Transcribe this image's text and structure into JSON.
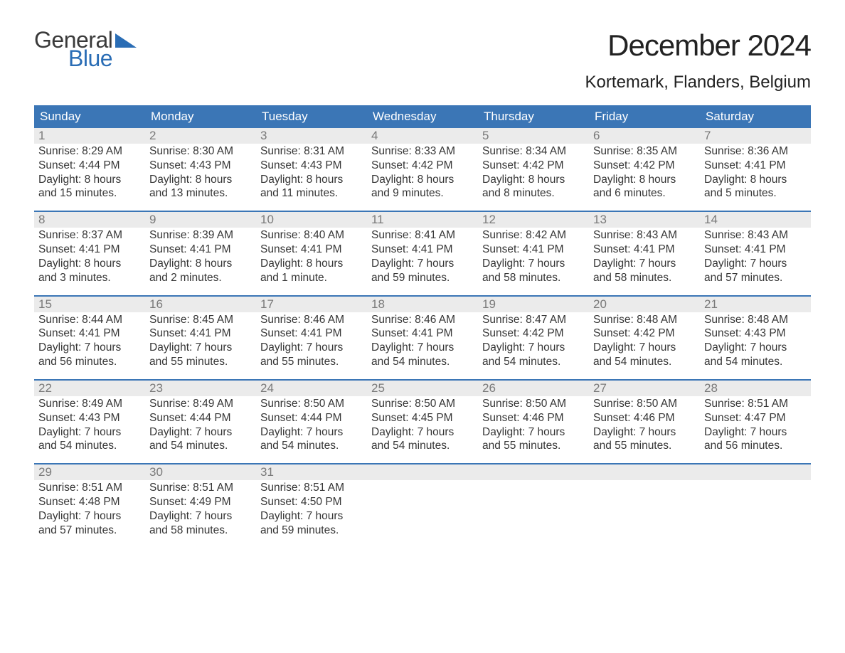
{
  "brand": {
    "word1": "General",
    "word2": "Blue",
    "flag_color": "#2a6db5",
    "text_dark": "#3a3a3a"
  },
  "title": "December 2024",
  "location": "Kortemark, Flanders, Belgium",
  "colors": {
    "header_bg": "#3b76b6",
    "header_text": "#ffffff",
    "daynum_bg": "#ebebeb",
    "daynum_text": "#7a7a7a",
    "body_text": "#363636",
    "week_border": "#3b76b6",
    "page_bg": "#ffffff"
  },
  "typography": {
    "month_title_fontsize": 42,
    "location_fontsize": 24,
    "day_header_fontsize": 17,
    "daynum_fontsize": 17,
    "body_fontsize": 15.5
  },
  "day_headers": [
    "Sunday",
    "Monday",
    "Tuesday",
    "Wednesday",
    "Thursday",
    "Friday",
    "Saturday"
  ],
  "weeks": [
    [
      {
        "n": "1",
        "sunrise": "Sunrise: 8:29 AM",
        "sunset": "Sunset: 4:44 PM",
        "day1": "Daylight: 8 hours",
        "day2": "and 15 minutes."
      },
      {
        "n": "2",
        "sunrise": "Sunrise: 8:30 AM",
        "sunset": "Sunset: 4:43 PM",
        "day1": "Daylight: 8 hours",
        "day2": "and 13 minutes."
      },
      {
        "n": "3",
        "sunrise": "Sunrise: 8:31 AM",
        "sunset": "Sunset: 4:43 PM",
        "day1": "Daylight: 8 hours",
        "day2": "and 11 minutes."
      },
      {
        "n": "4",
        "sunrise": "Sunrise: 8:33 AM",
        "sunset": "Sunset: 4:42 PM",
        "day1": "Daylight: 8 hours",
        "day2": "and 9 minutes."
      },
      {
        "n": "5",
        "sunrise": "Sunrise: 8:34 AM",
        "sunset": "Sunset: 4:42 PM",
        "day1": "Daylight: 8 hours",
        "day2": "and 8 minutes."
      },
      {
        "n": "6",
        "sunrise": "Sunrise: 8:35 AM",
        "sunset": "Sunset: 4:42 PM",
        "day1": "Daylight: 8 hours",
        "day2": "and 6 minutes."
      },
      {
        "n": "7",
        "sunrise": "Sunrise: 8:36 AM",
        "sunset": "Sunset: 4:41 PM",
        "day1": "Daylight: 8 hours",
        "day2": "and 5 minutes."
      }
    ],
    [
      {
        "n": "8",
        "sunrise": "Sunrise: 8:37 AM",
        "sunset": "Sunset: 4:41 PM",
        "day1": "Daylight: 8 hours",
        "day2": "and 3 minutes."
      },
      {
        "n": "9",
        "sunrise": "Sunrise: 8:39 AM",
        "sunset": "Sunset: 4:41 PM",
        "day1": "Daylight: 8 hours",
        "day2": "and 2 minutes."
      },
      {
        "n": "10",
        "sunrise": "Sunrise: 8:40 AM",
        "sunset": "Sunset: 4:41 PM",
        "day1": "Daylight: 8 hours",
        "day2": "and 1 minute."
      },
      {
        "n": "11",
        "sunrise": "Sunrise: 8:41 AM",
        "sunset": "Sunset: 4:41 PM",
        "day1": "Daylight: 7 hours",
        "day2": "and 59 minutes."
      },
      {
        "n": "12",
        "sunrise": "Sunrise: 8:42 AM",
        "sunset": "Sunset: 4:41 PM",
        "day1": "Daylight: 7 hours",
        "day2": "and 58 minutes."
      },
      {
        "n": "13",
        "sunrise": "Sunrise: 8:43 AM",
        "sunset": "Sunset: 4:41 PM",
        "day1": "Daylight: 7 hours",
        "day2": "and 58 minutes."
      },
      {
        "n": "14",
        "sunrise": "Sunrise: 8:43 AM",
        "sunset": "Sunset: 4:41 PM",
        "day1": "Daylight: 7 hours",
        "day2": "and 57 minutes."
      }
    ],
    [
      {
        "n": "15",
        "sunrise": "Sunrise: 8:44 AM",
        "sunset": "Sunset: 4:41 PM",
        "day1": "Daylight: 7 hours",
        "day2": "and 56 minutes."
      },
      {
        "n": "16",
        "sunrise": "Sunrise: 8:45 AM",
        "sunset": "Sunset: 4:41 PM",
        "day1": "Daylight: 7 hours",
        "day2": "and 55 minutes."
      },
      {
        "n": "17",
        "sunrise": "Sunrise: 8:46 AM",
        "sunset": "Sunset: 4:41 PM",
        "day1": "Daylight: 7 hours",
        "day2": "and 55 minutes."
      },
      {
        "n": "18",
        "sunrise": "Sunrise: 8:46 AM",
        "sunset": "Sunset: 4:41 PM",
        "day1": "Daylight: 7 hours",
        "day2": "and 54 minutes."
      },
      {
        "n": "19",
        "sunrise": "Sunrise: 8:47 AM",
        "sunset": "Sunset: 4:42 PM",
        "day1": "Daylight: 7 hours",
        "day2": "and 54 minutes."
      },
      {
        "n": "20",
        "sunrise": "Sunrise: 8:48 AM",
        "sunset": "Sunset: 4:42 PM",
        "day1": "Daylight: 7 hours",
        "day2": "and 54 minutes."
      },
      {
        "n": "21",
        "sunrise": "Sunrise: 8:48 AM",
        "sunset": "Sunset: 4:43 PM",
        "day1": "Daylight: 7 hours",
        "day2": "and 54 minutes."
      }
    ],
    [
      {
        "n": "22",
        "sunrise": "Sunrise: 8:49 AM",
        "sunset": "Sunset: 4:43 PM",
        "day1": "Daylight: 7 hours",
        "day2": "and 54 minutes."
      },
      {
        "n": "23",
        "sunrise": "Sunrise: 8:49 AM",
        "sunset": "Sunset: 4:44 PM",
        "day1": "Daylight: 7 hours",
        "day2": "and 54 minutes."
      },
      {
        "n": "24",
        "sunrise": "Sunrise: 8:50 AM",
        "sunset": "Sunset: 4:44 PM",
        "day1": "Daylight: 7 hours",
        "day2": "and 54 minutes."
      },
      {
        "n": "25",
        "sunrise": "Sunrise: 8:50 AM",
        "sunset": "Sunset: 4:45 PM",
        "day1": "Daylight: 7 hours",
        "day2": "and 54 minutes."
      },
      {
        "n": "26",
        "sunrise": "Sunrise: 8:50 AM",
        "sunset": "Sunset: 4:46 PM",
        "day1": "Daylight: 7 hours",
        "day2": "and 55 minutes."
      },
      {
        "n": "27",
        "sunrise": "Sunrise: 8:50 AM",
        "sunset": "Sunset: 4:46 PM",
        "day1": "Daylight: 7 hours",
        "day2": "and 55 minutes."
      },
      {
        "n": "28",
        "sunrise": "Sunrise: 8:51 AM",
        "sunset": "Sunset: 4:47 PM",
        "day1": "Daylight: 7 hours",
        "day2": "and 56 minutes."
      }
    ],
    [
      {
        "n": "29",
        "sunrise": "Sunrise: 8:51 AM",
        "sunset": "Sunset: 4:48 PM",
        "day1": "Daylight: 7 hours",
        "day2": "and 57 minutes."
      },
      {
        "n": "30",
        "sunrise": "Sunrise: 8:51 AM",
        "sunset": "Sunset: 4:49 PM",
        "day1": "Daylight: 7 hours",
        "day2": "and 58 minutes."
      },
      {
        "n": "31",
        "sunrise": "Sunrise: 8:51 AM",
        "sunset": "Sunset: 4:50 PM",
        "day1": "Daylight: 7 hours",
        "day2": "and 59 minutes."
      },
      null,
      null,
      null,
      null
    ]
  ]
}
